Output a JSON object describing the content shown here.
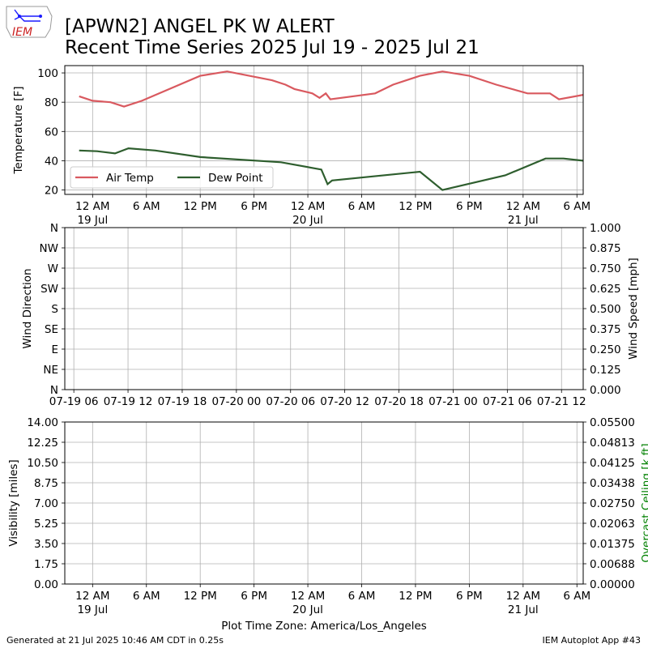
{
  "header": {
    "title_line1": "[APWN2] ANGEL PK W ALERT",
    "title_line2": "Recent Time Series 2025 Jul 19 - 2025 Jul 21",
    "logo_text": "IEM"
  },
  "footer": {
    "generated": "Generated at 21 Jul 2025 10:46 AM CDT in 0.25s",
    "app": "IEM Autoplot App #43",
    "timezone_label": "Plot Time Zone: America/Los_Angeles"
  },
  "colors": {
    "air_temp": "#d9595f",
    "dew_point": "#2e5e2e",
    "ceiling_label": "#008000",
    "grid": "#b0b0b0"
  },
  "chart_data": [
    {
      "type": "line",
      "ylabel": "Temperature [F]",
      "ylim": [
        17,
        105
      ],
      "xlim_hours": [
        -3.1,
        54.7
      ],
      "grid": true,
      "legend": "lower-left",
      "yticks": [
        20,
        40,
        60,
        80,
        100
      ],
      "xtick_hours": [
        0,
        6,
        12,
        18,
        24,
        30,
        36,
        42,
        48,
        54
      ],
      "xtick_labels": [
        "12 AM",
        "6 AM",
        "12 PM",
        "6 PM",
        "12 AM",
        "6 AM",
        "12 PM",
        "6 PM",
        "12 AM",
        "6 AM"
      ],
      "date_labels": [
        {
          "hour": 0,
          "label": "19 Jul"
        },
        {
          "hour": 24,
          "label": "20 Jul"
        },
        {
          "hour": 48,
          "label": "21 Jul"
        }
      ],
      "series": [
        {
          "name": "Air Temp",
          "color": "#d9595f",
          "points": [
            [
              -1.5,
              84
            ],
            [
              0,
              81
            ],
            [
              2,
              80
            ],
            [
              3.5,
              77
            ],
            [
              5.5,
              81
            ],
            [
              12,
              98
            ],
            [
              15,
              101
            ],
            [
              20,
              95
            ],
            [
              21.5,
              92
            ],
            [
              22.5,
              89
            ],
            [
              24.5,
              86
            ],
            [
              25.3,
              83
            ],
            [
              26,
              86
            ],
            [
              26.5,
              82
            ],
            [
              31.5,
              86
            ],
            [
              33.5,
              92
            ],
            [
              36.5,
              98
            ],
            [
              39,
              101
            ],
            [
              42,
              98
            ],
            [
              45,
              92
            ],
            [
              48.5,
              86
            ],
            [
              51,
              86
            ],
            [
              52,
              82
            ],
            [
              54.7,
              85
            ]
          ]
        },
        {
          "name": "Dew Point",
          "color": "#2e5e2e",
          "points": [
            [
              -1.5,
              47
            ],
            [
              0.5,
              46.5
            ],
            [
              2.5,
              45
            ],
            [
              4,
              48.5
            ],
            [
              7,
              47
            ],
            [
              12,
              42.5
            ],
            [
              21,
              39
            ],
            [
              25.5,
              34
            ],
            [
              26.2,
              24
            ],
            [
              26.7,
              26.5
            ],
            [
              36.5,
              32.5
            ],
            [
              39,
              20
            ],
            [
              46,
              30
            ],
            [
              50.5,
              41.5
            ],
            [
              52.5,
              41.5
            ],
            [
              54.7,
              40
            ]
          ]
        }
      ]
    },
    {
      "type": "line",
      "ylabel": "Wind Direction",
      "y2label": "Wind Speed [mph]",
      "grid": true,
      "yticks_labels": [
        "N",
        "NE",
        "E",
        "SE",
        "S",
        "SW",
        "W",
        "NW",
        "N"
      ],
      "y2ticks_labels": [
        "0.000",
        "0.125",
        "0.250",
        "0.375",
        "0.500",
        "0.625",
        "0.750",
        "0.875",
        "1.000"
      ],
      "xtick_labels": [
        "07-19 06",
        "07-19 12",
        "07-19 18",
        "07-20 00",
        "07-20 06",
        "07-20 12",
        "07-20 18",
        "07-21 00",
        "07-21 06",
        "07-21 12"
      ],
      "xtick_hours": [
        6,
        12,
        18,
        24,
        30,
        36,
        42,
        48,
        54,
        60
      ],
      "xlim_hours": [
        5,
        62.4
      ],
      "series": []
    },
    {
      "type": "line",
      "ylabel": "Visibility [miles]",
      "y2label": "Overcast Ceiling [k ft]",
      "grid": true,
      "ylim": [
        0,
        14
      ],
      "yticks_labels": [
        "0.00",
        "1.75",
        "3.50",
        "5.25",
        "7.00",
        "8.75",
        "10.50",
        "12.25",
        "14.00"
      ],
      "y2ticks_labels": [
        "0.00000",
        "0.00688",
        "0.01375",
        "0.02063",
        "0.02750",
        "0.03438",
        "0.04125",
        "0.04813",
        "0.05500"
      ],
      "xlim_hours": [
        -3.1,
        54.7
      ],
      "xtick_hours": [
        0,
        6,
        12,
        18,
        24,
        30,
        36,
        42,
        48,
        54
      ],
      "xtick_labels": [
        "12 AM",
        "6 AM",
        "12 PM",
        "6 PM",
        "12 AM",
        "6 AM",
        "12 PM",
        "6 PM",
        "12 AM",
        "6 AM"
      ],
      "date_labels": [
        {
          "hour": 0,
          "label": "19 Jul"
        },
        {
          "hour": 24,
          "label": "20 Jul"
        },
        {
          "hour": 48,
          "label": "21 Jul"
        }
      ],
      "series": []
    }
  ]
}
